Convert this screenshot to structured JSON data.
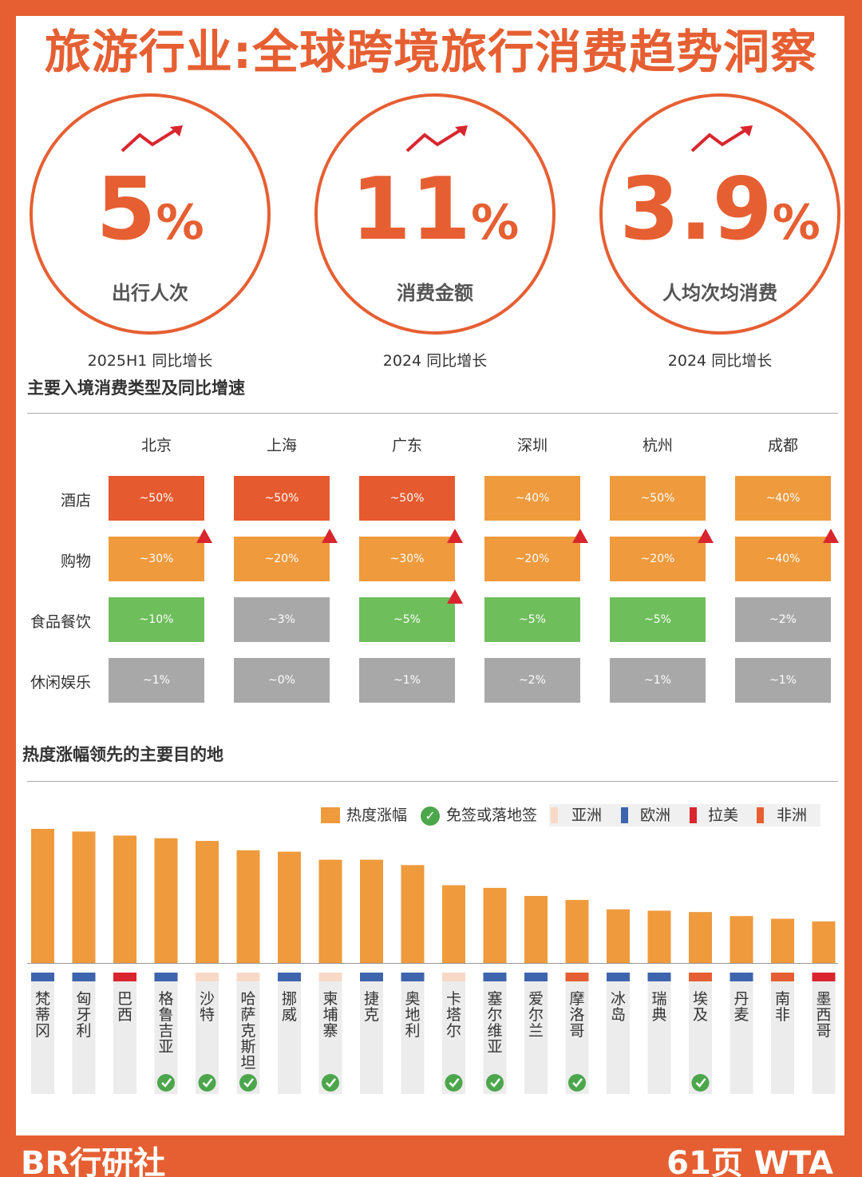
{
  "title": "旅游行业:全球跨境旅行消费趋势洞察",
  "kpis": [
    {
      "value": "5",
      "unit": "%",
      "label": "出行人次",
      "sub": "2025H1 同比增长"
    },
    {
      "value": "11",
      "unit": "%",
      "label": "消费金额",
      "sub": "2024 同比增长"
    },
    {
      "value": "3.9",
      "unit": "%",
      "label": "人均次均消费",
      "sub": "2024 同比增长"
    }
  ],
  "heatmap_title": "主要入境消费类型及同比增速",
  "bar_title": "热度涨幅领先的主要目的地",
  "colors": {
    "brand": "#E65F32",
    "deep": "#E55A2F",
    "orange": "#EF9A3D",
    "green": "#6FBE5C",
    "gray": "#A8A8A8",
    "bar": "#EF9A3D",
    "asia": "#F8D9C8",
    "europe": "#3E64AE",
    "latam": "#D9262E",
    "africa": "#E65F32",
    "check": "#4CA64C",
    "up_arrow": "#D9262E"
  },
  "legend": {
    "bar": "热度涨幅",
    "visa": "免签或落地签",
    "asia": "亚洲",
    "europe": "欧洲",
    "latam": "拉美",
    "africa": "非洲"
  },
  "chart_data": [
    {
      "type": "heatmap",
      "title": "主要入境消费类型及同比增速",
      "columns": [
        "北京",
        "上海",
        "广东",
        "深圳",
        "杭州",
        "成都"
      ],
      "rows": [
        "酒店",
        "购物",
        "食品餐饮",
        "休闲娱乐"
      ],
      "cells": [
        [
          {
            "text": "~50%",
            "color": "deep",
            "up": false
          },
          {
            "text": "~50%",
            "color": "deep",
            "up": false
          },
          {
            "text": "~50%",
            "color": "deep",
            "up": false
          },
          {
            "text": "~40%",
            "color": "orange",
            "up": false
          },
          {
            "text": "~50%",
            "color": "orange",
            "up": false
          },
          {
            "text": "~40%",
            "color": "orange",
            "up": false
          }
        ],
        [
          {
            "text": "~30%",
            "color": "orange",
            "up": true
          },
          {
            "text": "~20%",
            "color": "orange",
            "up": true
          },
          {
            "text": "~30%",
            "color": "orange",
            "up": true
          },
          {
            "text": "~20%",
            "color": "orange",
            "up": true
          },
          {
            "text": "~20%",
            "color": "orange",
            "up": true
          },
          {
            "text": "~40%",
            "color": "orange",
            "up": true
          }
        ],
        [
          {
            "text": "~10%",
            "color": "green",
            "up": false
          },
          {
            "text": "~3%",
            "color": "gray",
            "up": false
          },
          {
            "text": "~5%",
            "color": "green",
            "up": true
          },
          {
            "text": "~5%",
            "color": "green",
            "up": false
          },
          {
            "text": "~5%",
            "color": "green",
            "up": false
          },
          {
            "text": "~2%",
            "color": "gray",
            "up": false
          }
        ],
        [
          {
            "text": "~1%",
            "color": "gray",
            "up": false
          },
          {
            "text": "~0%",
            "color": "gray",
            "up": false
          },
          {
            "text": "~1%",
            "color": "gray",
            "up": false
          },
          {
            "text": "~2%",
            "color": "gray",
            "up": false
          },
          {
            "text": "~1%",
            "color": "gray",
            "up": false
          },
          {
            "text": "~1%",
            "color": "gray",
            "up": false
          }
        ]
      ]
    },
    {
      "type": "bar",
      "title": "热度涨幅领先的主要目的地",
      "categories": [
        "梵蒂冈",
        "匈牙利",
        "巴西",
        "格鲁吉亚",
        "沙特",
        "哈萨克斯坦",
        "挪威",
        "柬埔寨",
        "捷克",
        "奥地利",
        "卡塔尔",
        "塞尔维亚",
        "爱尔兰",
        "摩洛哥",
        "冰岛",
        "瑞典",
        "埃及",
        "丹麦",
        "南非",
        "墨西哥"
      ],
      "values": [
        100,
        98,
        95,
        93,
        91,
        84,
        83,
        77,
        77,
        73,
        58,
        56,
        50,
        47,
        40,
        39,
        38,
        35,
        33,
        31
      ],
      "region": [
        "europe",
        "europe",
        "latam",
        "europe",
        "asia",
        "asia",
        "europe",
        "asia",
        "europe",
        "europe",
        "asia",
        "europe",
        "europe",
        "africa",
        "europe",
        "europe",
        "africa",
        "europe",
        "africa",
        "latam"
      ],
      "visa_free": [
        false,
        false,
        false,
        true,
        true,
        true,
        false,
        true,
        false,
        false,
        true,
        true,
        false,
        true,
        false,
        false,
        true,
        false,
        false,
        false
      ],
      "ylim": [
        0,
        100
      ]
    }
  ],
  "footer": {
    "left": "BR行研社",
    "right": "61页 WTA"
  }
}
